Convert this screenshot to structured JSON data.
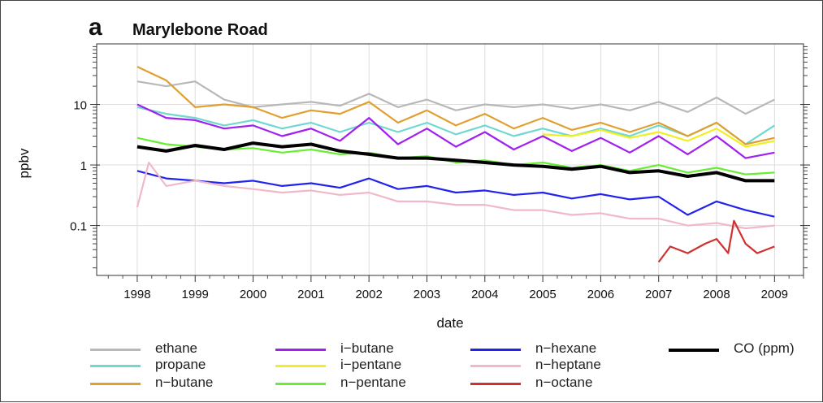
{
  "panel_letter": "a",
  "chart_data": {
    "type": "line",
    "title": "Marylebone Road",
    "xlabel": "date",
    "ylabel": "ppbv",
    "yscale": "log",
    "ylim": [
      0.015,
      100
    ],
    "xlim": [
      1997.3,
      2009.5
    ],
    "yticks": [
      {
        "value": 0.1,
        "label": "0.1"
      },
      {
        "value": 1,
        "label": "1"
      },
      {
        "value": 10,
        "label": "10"
      }
    ],
    "xticks": [
      1998,
      1999,
      2000,
      2001,
      2002,
      2003,
      2004,
      2005,
      2006,
      2007,
      2008,
      2009
    ],
    "xtick_labels": [
      "1998",
      "1999",
      "2000",
      "2001",
      "2002",
      "2003",
      "2004",
      "2005",
      "2006",
      "2007",
      "2008",
      "2009"
    ],
    "grid": true,
    "legend_position": "bottom",
    "series": [
      {
        "name": "ethane",
        "color": "#b8b8b8",
        "width": 2.2,
        "x": [
          1998.0,
          1998.5,
          1999.0,
          1999.5,
          2000.0,
          2000.5,
          2001.0,
          2001.5,
          2002.0,
          2002.5,
          2003.0,
          2003.5,
          2004.0,
          2004.5,
          2005.0,
          2005.5,
          2006.0,
          2006.5,
          2007.0,
          2007.5,
          2008.0,
          2008.5,
          2009.0
        ],
        "values": [
          24,
          20,
          24,
          12,
          9,
          10,
          11,
          9.5,
          15,
          9,
          12,
          8,
          10,
          9,
          10,
          8.5,
          10,
          8,
          11,
          7.5,
          13,
          7,
          12
        ]
      },
      {
        "name": "propane",
        "color": "#6fd8d0",
        "width": 2.2,
        "x": [
          1998.0,
          1998.5,
          1999.0,
          1999.5,
          2000.0,
          2000.5,
          2001.0,
          2001.5,
          2002.0,
          2002.5,
          2003.0,
          2003.5,
          2004.0,
          2004.5,
          2005.0,
          2005.5,
          2006.0,
          2006.5,
          2007.0,
          2007.5,
          2008.0,
          2008.5,
          2009.0
        ],
        "values": [
          9,
          7,
          6,
          4.5,
          5.5,
          4,
          5,
          3.5,
          5,
          3.5,
          5,
          3.2,
          4.5,
          3,
          4,
          3,
          4,
          3,
          4.5,
          3,
          5,
          2.2,
          4.5
        ]
      },
      {
        "name": "n−butane",
        "color": "#e0a030",
        "width": 2.2,
        "x": [
          1998.0,
          1998.5,
          1999.0,
          1999.5,
          2000.0,
          2000.5,
          2001.0,
          2001.5,
          2002.0,
          2002.5,
          2003.0,
          2003.5,
          2004.0,
          2004.5,
          2005.0,
          2005.5,
          2006.0,
          2006.5,
          2007.0,
          2007.5,
          2008.0,
          2008.5,
          2009.0
        ],
        "values": [
          42,
          25,
          9,
          10,
          9,
          6,
          8,
          7,
          11,
          5,
          8,
          4.5,
          7,
          4,
          6,
          3.8,
          5,
          3.5,
          5,
          3,
          5,
          2.2,
          2.8
        ]
      },
      {
        "name": "i−butane",
        "color": "#a020f0",
        "width": 2.2,
        "x": [
          1998.0,
          1998.5,
          1999.0,
          1999.5,
          2000.0,
          2000.5,
          2001.0,
          2001.5,
          2002.0,
          2002.5,
          2003.0,
          2003.5,
          2004.0,
          2004.5,
          2005.0,
          2005.5,
          2006.0,
          2006.5,
          2007.0,
          2007.5,
          2008.0,
          2008.5,
          2009.0
        ],
        "values": [
          10,
          6,
          5.5,
          4,
          4.5,
          3,
          4,
          2.5,
          6,
          2.2,
          4,
          2,
          3.5,
          1.8,
          3,
          1.7,
          2.8,
          1.6,
          3,
          1.5,
          3,
          1.3,
          1.6
        ]
      },
      {
        "name": "i−pentane",
        "color": "#f0f020",
        "width": 2.2,
        "x": [
          2005.0,
          2005.5,
          2006.0,
          2006.5,
          2007.0,
          2007.5,
          2008.0,
          2008.5,
          2009.0
        ],
        "values": [
          3.2,
          3,
          3.8,
          2.8,
          3.5,
          2.5,
          4,
          2,
          2.5
        ]
      },
      {
        "name": "n−pentane",
        "color": "#66ee33",
        "width": 2.2,
        "x": [
          1998.0,
          1998.5,
          1999.0,
          1999.5,
          2000.0,
          2000.5,
          2001.0,
          2001.5,
          2002.0,
          2002.5,
          2003.0,
          2003.5,
          2004.0,
          2004.5,
          2005.0,
          2005.5,
          2006.0,
          2006.5,
          2007.0,
          2007.5,
          2008.0,
          2008.5,
          2009.0
        ],
        "values": [
          2.8,
          2.2,
          2,
          1.8,
          1.9,
          1.6,
          1.8,
          1.5,
          1.6,
          1.3,
          1.4,
          1.1,
          1.2,
          1,
          1.1,
          0.9,
          1,
          0.8,
          1,
          0.75,
          0.9,
          0.7,
          0.75
        ]
      },
      {
        "name": "n−hexane",
        "color": "#2222ee",
        "width": 2.2,
        "x": [
          1998.0,
          1998.5,
          1999.0,
          1999.5,
          2000.0,
          2000.5,
          2001.0,
          2001.5,
          2002.0,
          2002.5,
          2003.0,
          2003.5,
          2004.0,
          2004.5,
          2005.0,
          2005.5,
          2006.0,
          2006.5,
          2007.0,
          2007.5,
          2008.0,
          2008.5,
          2009.0
        ],
        "values": [
          0.8,
          0.6,
          0.55,
          0.5,
          0.55,
          0.45,
          0.5,
          0.42,
          0.6,
          0.4,
          0.45,
          0.35,
          0.38,
          0.32,
          0.35,
          0.28,
          0.33,
          0.27,
          0.3,
          0.15,
          0.25,
          0.18,
          0.14
        ]
      },
      {
        "name": "n−heptane",
        "color": "#f0b8c8",
        "width": 2.2,
        "x": [
          1998.0,
          1998.2,
          1998.5,
          1999.0,
          1999.5,
          2000.0,
          2000.5,
          2001.0,
          2001.5,
          2002.0,
          2002.5,
          2003.0,
          2003.5,
          2004.0,
          2004.5,
          2005.0,
          2005.5,
          2006.0,
          2006.5,
          2007.0,
          2007.5,
          2008.0,
          2008.5,
          2009.0
        ],
        "values": [
          0.2,
          1.1,
          0.45,
          0.55,
          0.45,
          0.4,
          0.35,
          0.38,
          0.32,
          0.35,
          0.25,
          0.25,
          0.22,
          0.22,
          0.18,
          0.18,
          0.15,
          0.16,
          0.13,
          0.13,
          0.1,
          0.11,
          0.09,
          0.1
        ]
      },
      {
        "name": "n−octane",
        "color": "#d03030",
        "width": 2.2,
        "x": [
          2007.0,
          2007.2,
          2007.5,
          2007.8,
          2008.0,
          2008.2,
          2008.3,
          2008.5,
          2008.7,
          2009.0
        ],
        "values": [
          0.025,
          0.045,
          0.035,
          0.05,
          0.06,
          0.035,
          0.12,
          0.05,
          0.035,
          0.045
        ]
      },
      {
        "name": "CO (ppm)",
        "color": "#000000",
        "width": 4,
        "x": [
          1998.0,
          1998.5,
          1999.0,
          1999.5,
          2000.0,
          2000.5,
          2001.0,
          2001.5,
          2002.0,
          2002.5,
          2003.0,
          2003.5,
          2004.0,
          2004.5,
          2005.0,
          2005.5,
          2006.0,
          2006.5,
          2007.0,
          2007.5,
          2008.0,
          2008.5,
          2009.0
        ],
        "values": [
          2,
          1.7,
          2.1,
          1.8,
          2.3,
          2,
          2.2,
          1.7,
          1.5,
          1.3,
          1.3,
          1.2,
          1.1,
          1,
          0.95,
          0.85,
          0.95,
          0.75,
          0.8,
          0.65,
          0.75,
          0.55,
          0.55
        ]
      }
    ]
  }
}
